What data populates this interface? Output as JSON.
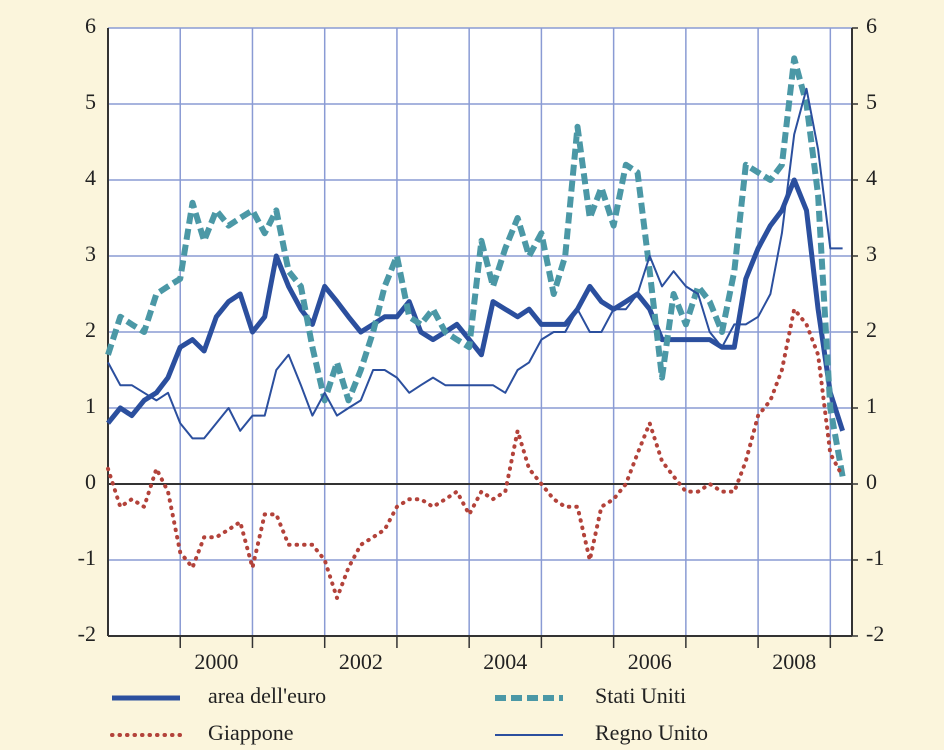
{
  "chart_data": {
    "type": "line",
    "x": [
      1999,
      1999.17,
      1999.33,
      1999.5,
      1999.67,
      1999.83,
      2000,
      2000.17,
      2000.33,
      2000.5,
      2000.67,
      2000.83,
      2001,
      2001.17,
      2001.33,
      2001.5,
      2001.67,
      2001.83,
      2002,
      2002.17,
      2002.33,
      2002.5,
      2002.67,
      2002.83,
      2003,
      2003.17,
      2003.33,
      2003.5,
      2003.67,
      2003.83,
      2004,
      2004.17,
      2004.33,
      2004.5,
      2004.67,
      2004.83,
      2005,
      2005.17,
      2005.33,
      2005.5,
      2005.67,
      2005.83,
      2006,
      2006.17,
      2006.33,
      2006.5,
      2006.67,
      2006.83,
      2007,
      2007.17,
      2007.33,
      2007.5,
      2007.67,
      2007.83,
      2008,
      2008.17,
      2008.33,
      2008.5,
      2008.67,
      2008.83,
      2009,
      2009.17
    ],
    "series": [
      {
        "name": "area dell'euro",
        "color": "#2b4f9e",
        "line_style": "solid",
        "line_width": 5,
        "values": [
          0.8,
          1.0,
          0.9,
          1.1,
          1.2,
          1.4,
          1.8,
          1.9,
          1.75,
          2.2,
          2.4,
          2.5,
          2.0,
          2.2,
          3.0,
          2.6,
          2.3,
          2.1,
          2.6,
          2.4,
          2.2,
          2.0,
          2.1,
          2.2,
          2.2,
          2.4,
          2.0,
          1.9,
          2.0,
          2.1,
          1.9,
          1.7,
          2.4,
          2.3,
          2.2,
          2.3,
          2.1,
          2.1,
          2.1,
          2.3,
          2.6,
          2.4,
          2.3,
          2.4,
          2.5,
          2.3,
          1.9,
          1.9,
          1.9,
          1.9,
          1.9,
          1.8,
          1.8,
          2.7,
          3.1,
          3.4,
          3.6,
          4.0,
          3.6,
          2.3,
          1.2,
          0.7
        ]
      },
      {
        "name": "Stati Uniti",
        "color": "#4b98a6",
        "line_style": "dashed",
        "line_width": 6,
        "values": [
          1.7,
          2.2,
          2.1,
          2.0,
          2.5,
          2.6,
          2.7,
          3.7,
          3.2,
          3.6,
          3.4,
          3.5,
          3.6,
          3.3,
          3.6,
          2.8,
          2.6,
          1.8,
          1.1,
          1.6,
          1.1,
          1.5,
          2.0,
          2.6,
          3.0,
          2.2,
          2.1,
          2.3,
          2.0,
          1.9,
          1.8,
          3.2,
          2.6,
          3.1,
          3.5,
          3.0,
          3.3,
          2.5,
          3.0,
          4.7,
          3.5,
          3.9,
          3.4,
          4.2,
          4.1,
          2.8,
          1.4,
          2.5,
          2.1,
          2.6,
          2.4,
          2.0,
          2.8,
          4.2,
          4.1,
          4.0,
          4.2,
          5.6,
          5.0,
          3.8,
          1.0,
          0.1
        ]
      },
      {
        "name": "Giappone",
        "color": "#b3423a",
        "line_style": "dotted",
        "line_width": 4,
        "values": [
          0.2,
          -0.3,
          -0.2,
          -0.3,
          0.2,
          -0.1,
          -0.9,
          -1.1,
          -0.7,
          -0.7,
          -0.6,
          -0.5,
          -1.1,
          -0.4,
          -0.4,
          -0.8,
          -0.8,
          -0.8,
          -1.0,
          -1.5,
          -1.1,
          -0.8,
          -0.7,
          -0.6,
          -0.3,
          -0.2,
          -0.2,
          -0.3,
          -0.2,
          -0.1,
          -0.4,
          -0.1,
          -0.2,
          -0.1,
          0.7,
          0.2,
          0.0,
          -0.2,
          -0.3,
          -0.3,
          -1.0,
          -0.3,
          -0.2,
          0.0,
          0.4,
          0.8,
          0.3,
          0.1,
          -0.1,
          -0.1,
          0.0,
          -0.1,
          -0.1,
          0.3,
          0.9,
          1.1,
          1.5,
          2.3,
          2.1,
          1.7,
          0.4,
          0.1
        ]
      },
      {
        "name": "Regno Unito",
        "color": "#2b4f9e",
        "line_style": "solid",
        "line_width": 2,
        "values": [
          1.6,
          1.3,
          1.3,
          1.2,
          1.1,
          1.2,
          0.8,
          0.6,
          0.6,
          0.8,
          1.0,
          0.7,
          0.9,
          0.9,
          1.5,
          1.7,
          1.3,
          0.9,
          1.2,
          0.9,
          1.0,
          1.1,
          1.5,
          1.5,
          1.4,
          1.2,
          1.3,
          1.4,
          1.3,
          1.3,
          1.3,
          1.3,
          1.3,
          1.2,
          1.5,
          1.6,
          1.9,
          2.0,
          2.0,
          2.3,
          2.0,
          2.0,
          2.3,
          2.3,
          2.5,
          3.0,
          2.6,
          2.8,
          2.6,
          2.5,
          2.0,
          1.8,
          2.1,
          2.1,
          2.2,
          2.5,
          3.3,
          4.6,
          5.2,
          4.4,
          3.1,
          3.1
        ]
      }
    ],
    "xlim": [
      1999,
      2009.3
    ],
    "xticks": [
      {
        "value": 2000.5,
        "label": "2000"
      },
      {
        "value": 2002.5,
        "label": "2002"
      },
      {
        "value": 2004.5,
        "label": "2004"
      },
      {
        "value": 2006.5,
        "label": "2006"
      },
      {
        "value": 2008.5,
        "label": "2008"
      }
    ],
    "xgrid_lines": [
      2000,
      2001,
      2002,
      2003,
      2004,
      2005,
      2006,
      2007,
      2008,
      2009
    ],
    "ylim": [
      -2,
      6
    ],
    "yticks": [
      -2,
      -1,
      0,
      1,
      2,
      3,
      4,
      5,
      6
    ],
    "y2lim": [
      -2,
      6
    ],
    "y2ticks": [
      -2,
      -1,
      0,
      1,
      2,
      3,
      4,
      5,
      6
    ],
    "grid": true
  }
}
